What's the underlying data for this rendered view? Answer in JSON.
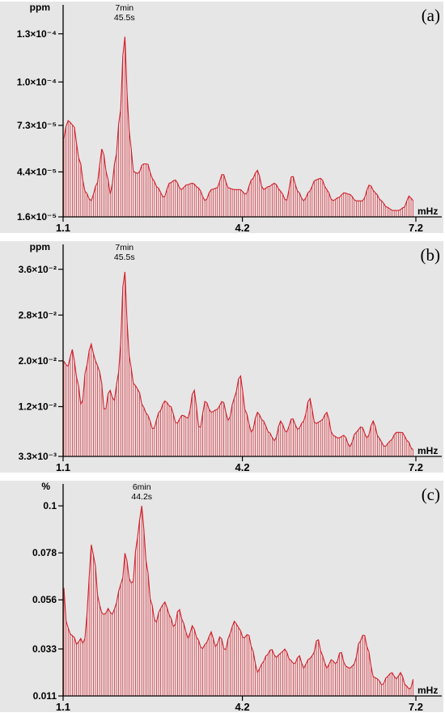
{
  "chart_data": [
    {
      "type": "bar",
      "panel_label": "(a)",
      "ylabel": "ppm",
      "xlabel": "mHz",
      "yticks": [
        "1.6×10⁻⁵",
        "4.4×10⁻⁵",
        "7.3×10⁻⁵",
        "1.0×10⁻⁴",
        "1.3×10⁻⁴"
      ],
      "ytick_values": [
        1.6e-05,
        4.4e-05,
        7.3e-05,
        0.0001,
        0.00013
      ],
      "xticks": [
        "1.1",
        "4.2",
        "7.2"
      ],
      "xtick_values": [
        1.1,
        4.2,
        7.2
      ],
      "xlim": [
        1.1,
        7.2
      ],
      "ylim": [
        1.6e-05,
        0.000145
      ],
      "peak": {
        "line1": "7min",
        "line2": "45.5s",
        "x": 2.16,
        "y": 0.00013
      },
      "spectrum": [
        [
          1.1,
          6.4e-05
        ],
        [
          1.18,
          7.6e-05
        ],
        [
          1.28,
          7.3e-05
        ],
        [
          1.38,
          5.2e-05
        ],
        [
          1.48,
          3.2e-05
        ],
        [
          1.58,
          2.6e-05
        ],
        [
          1.68,
          3.6e-05
        ],
        [
          1.78,
          5.9e-05
        ],
        [
          1.85,
          4.4e-05
        ],
        [
          1.92,
          3e-05
        ],
        [
          2.0,
          5e-05
        ],
        [
          2.08,
          7.8e-05
        ],
        [
          2.16,
          0.00013
        ],
        [
          2.24,
          7e-05
        ],
        [
          2.32,
          4.4e-05
        ],
        [
          2.4,
          4.3e-05
        ],
        [
          2.48,
          4.9e-05
        ],
        [
          2.56,
          4.9e-05
        ],
        [
          2.64,
          4e-05
        ],
        [
          2.74,
          3.4e-05
        ],
        [
          2.84,
          2.8e-05
        ],
        [
          2.94,
          3.7e-05
        ],
        [
          3.04,
          3.9e-05
        ],
        [
          3.14,
          3.3e-05
        ],
        [
          3.24,
          3.6e-05
        ],
        [
          3.34,
          3.7e-05
        ],
        [
          3.44,
          3.4e-05
        ],
        [
          3.56,
          2.6e-05
        ],
        [
          3.66,
          3.3e-05
        ],
        [
          3.76,
          3.4e-05
        ],
        [
          3.86,
          4.3e-05
        ],
        [
          3.96,
          3.4e-05
        ],
        [
          4.06,
          3.3e-05
        ],
        [
          4.16,
          3.3e-05
        ],
        [
          4.26,
          3e-05
        ],
        [
          4.36,
          3.9e-05
        ],
        [
          4.46,
          4.5e-05
        ],
        [
          4.56,
          3.3e-05
        ],
        [
          4.66,
          3.5e-05
        ],
        [
          4.76,
          3.7e-05
        ],
        [
          4.86,
          3.2e-05
        ],
        [
          4.96,
          2.6e-05
        ],
        [
          5.06,
          4.2e-05
        ],
        [
          5.16,
          3.2e-05
        ],
        [
          5.26,
          2.6e-05
        ],
        [
          5.36,
          3.2e-05
        ],
        [
          5.46,
          3.9e-05
        ],
        [
          5.56,
          4e-05
        ],
        [
          5.66,
          3.3e-05
        ],
        [
          5.76,
          2.6e-05
        ],
        [
          5.86,
          2.8e-05
        ],
        [
          5.96,
          3.1e-05
        ],
        [
          6.06,
          3e-05
        ],
        [
          6.16,
          2.6e-05
        ],
        [
          6.28,
          2.6e-05
        ],
        [
          6.4,
          3.6e-05
        ],
        [
          6.5,
          3.1e-05
        ],
        [
          6.6,
          2.6e-05
        ],
        [
          6.7,
          2.2e-05
        ],
        [
          6.8,
          2e-05
        ],
        [
          6.9,
          2e-05
        ],
        [
          7.0,
          2.2e-05
        ],
        [
          7.08,
          2.9e-05
        ],
        [
          7.16,
          2.6e-05
        ],
        [
          7.2,
          2.4e-05
        ]
      ]
    },
    {
      "type": "bar",
      "panel_label": "(b)",
      "ylabel": "ppm",
      "xlabel": "mHz",
      "yticks": [
        "3.3×10⁻³",
        "1.2×10⁻²",
        "2.0×10⁻²",
        "2.8×10⁻²",
        "3.6×10⁻²"
      ],
      "ytick_values": [
        0.0033,
        0.012,
        0.02,
        0.028,
        0.036
      ],
      "xticks": [
        "1.1",
        "4.2",
        "7.2"
      ],
      "xtick_values": [
        1.1,
        4.2,
        7.2
      ],
      "xlim": [
        1.1,
        7.2
      ],
      "ylim": [
        0.0033,
        0.0395
      ],
      "peak": {
        "line1": "7min",
        "line2": "45.5s",
        "x": 2.16,
        "y": 0.036
      },
      "spectrum": [
        [
          1.1,
          0.02
        ],
        [
          1.18,
          0.019
        ],
        [
          1.26,
          0.022
        ],
        [
          1.34,
          0.017
        ],
        [
          1.42,
          0.012
        ],
        [
          1.5,
          0.019
        ],
        [
          1.58,
          0.023
        ],
        [
          1.66,
          0.02
        ],
        [
          1.74,
          0.018
        ],
        [
          1.82,
          0.011
        ],
        [
          1.9,
          0.015
        ],
        [
          1.98,
          0.013
        ],
        [
          2.06,
          0.018
        ],
        [
          2.16,
          0.036
        ],
        [
          2.24,
          0.021
        ],
        [
          2.32,
          0.016
        ],
        [
          2.4,
          0.015
        ],
        [
          2.48,
          0.012
        ],
        [
          2.56,
          0.0105
        ],
        [
          2.66,
          0.008
        ],
        [
          2.76,
          0.011
        ],
        [
          2.86,
          0.013
        ],
        [
          2.96,
          0.012
        ],
        [
          3.06,
          0.009
        ],
        [
          3.16,
          0.0105
        ],
        [
          3.26,
          0.01
        ],
        [
          3.36,
          0.015
        ],
        [
          3.46,
          0.008
        ],
        [
          3.56,
          0.013
        ],
        [
          3.66,
          0.011
        ],
        [
          3.76,
          0.0115
        ],
        [
          3.86,
          0.013
        ],
        [
          3.96,
          0.0095
        ],
        [
          4.06,
          0.0135
        ],
        [
          4.16,
          0.0175
        ],
        [
          4.26,
          0.011
        ],
        [
          4.36,
          0.0075
        ],
        [
          4.46,
          0.011
        ],
        [
          4.56,
          0.0095
        ],
        [
          4.66,
          0.0075
        ],
        [
          4.76,
          0.006
        ],
        [
          4.86,
          0.0095
        ],
        [
          4.96,
          0.0075
        ],
        [
          5.06,
          0.01
        ],
        [
          5.16,
          0.008
        ],
        [
          5.26,
          0.0095
        ],
        [
          5.36,
          0.0135
        ],
        [
          5.46,
          0.009
        ],
        [
          5.56,
          0.0095
        ],
        [
          5.66,
          0.011
        ],
        [
          5.76,
          0.007
        ],
        [
          5.86,
          0.0065
        ],
        [
          5.96,
          0.007
        ],
        [
          6.06,
          0.005
        ],
        [
          6.16,
          0.0075
        ],
        [
          6.26,
          0.0085
        ],
        [
          6.36,
          0.0065
        ],
        [
          6.46,
          0.0095
        ],
        [
          6.56,
          0.0065
        ],
        [
          6.66,
          0.005
        ],
        [
          6.76,
          0.006
        ],
        [
          6.86,
          0.0075
        ],
        [
          6.96,
          0.0075
        ],
        [
          7.06,
          0.006
        ],
        [
          7.14,
          0.0045
        ],
        [
          7.2,
          0.004
        ]
      ]
    },
    {
      "type": "bar",
      "panel_label": "(c)",
      "ylabel": "%",
      "xlabel": "mHz",
      "yticks": [
        "0.011",
        "0.033",
        "0.056",
        "0.078",
        "0.1"
      ],
      "ytick_values": [
        0.011,
        0.033,
        0.056,
        0.078,
        0.1
      ],
      "xticks": [
        "1.1",
        "4.2",
        "7.2"
      ],
      "xtick_values": [
        1.1,
        4.2,
        7.2
      ],
      "xlim": [
        1.1,
        7.2
      ],
      "ylim": [
        0.011,
        0.108
      ],
      "peak": {
        "line1": "6min",
        "line2": "44.2s",
        "x": 2.46,
        "y": 0.1
      },
      "spectrum": [
        [
          1.1,
          0.064
        ],
        [
          1.16,
          0.045
        ],
        [
          1.22,
          0.04
        ],
        [
          1.28,
          0.039
        ],
        [
          1.34,
          0.035
        ],
        [
          1.4,
          0.038
        ],
        [
          1.46,
          0.035
        ],
        [
          1.52,
          0.05
        ],
        [
          1.58,
          0.082
        ],
        [
          1.64,
          0.076
        ],
        [
          1.7,
          0.058
        ],
        [
          1.76,
          0.05
        ],
        [
          1.82,
          0.049
        ],
        [
          1.88,
          0.052
        ],
        [
          1.94,
          0.049
        ],
        [
          2.0,
          0.052
        ],
        [
          2.06,
          0.06
        ],
        [
          2.12,
          0.065
        ],
        [
          2.18,
          0.079
        ],
        [
          2.24,
          0.066
        ],
        [
          2.3,
          0.063
        ],
        [
          2.38,
          0.085
        ],
        [
          2.46,
          0.1
        ],
        [
          2.54,
          0.074
        ],
        [
          2.62,
          0.055
        ],
        [
          2.7,
          0.045
        ],
        [
          2.78,
          0.052
        ],
        [
          2.86,
          0.055
        ],
        [
          2.94,
          0.049
        ],
        [
          3.02,
          0.043
        ],
        [
          3.1,
          0.052
        ],
        [
          3.18,
          0.045
        ],
        [
          3.26,
          0.038
        ],
        [
          3.34,
          0.044
        ],
        [
          3.42,
          0.038
        ],
        [
          3.5,
          0.033
        ],
        [
          3.58,
          0.036
        ],
        [
          3.66,
          0.041
        ],
        [
          3.74,
          0.034
        ],
        [
          3.82,
          0.039
        ],
        [
          3.9,
          0.032
        ],
        [
          3.98,
          0.04
        ],
        [
          4.06,
          0.046
        ],
        [
          4.14,
          0.043
        ],
        [
          4.22,
          0.038
        ],
        [
          4.3,
          0.04
        ],
        [
          4.38,
          0.032
        ],
        [
          4.46,
          0.022
        ],
        [
          4.54,
          0.026
        ],
        [
          4.62,
          0.03
        ],
        [
          4.7,
          0.033
        ],
        [
          4.78,
          0.029
        ],
        [
          4.86,
          0.031
        ],
        [
          4.94,
          0.033
        ],
        [
          5.02,
          0.028
        ],
        [
          5.1,
          0.026
        ],
        [
          5.18,
          0.03
        ],
        [
          5.26,
          0.024
        ],
        [
          5.34,
          0.028
        ],
        [
          5.42,
          0.03
        ],
        [
          5.5,
          0.038
        ],
        [
          5.58,
          0.03
        ],
        [
          5.66,
          0.024
        ],
        [
          5.74,
          0.028
        ],
        [
          5.82,
          0.026
        ],
        [
          5.9,
          0.032
        ],
        [
          5.98,
          0.025
        ],
        [
          6.06,
          0.024
        ],
        [
          6.14,
          0.026
        ],
        [
          6.22,
          0.036
        ],
        [
          6.3,
          0.04
        ],
        [
          6.38,
          0.032
        ],
        [
          6.46,
          0.02
        ],
        [
          6.54,
          0.019
        ],
        [
          6.62,
          0.016
        ],
        [
          6.7,
          0.02
        ],
        [
          6.78,
          0.022
        ],
        [
          6.86,
          0.019
        ],
        [
          6.94,
          0.022
        ],
        [
          7.02,
          0.016
        ],
        [
          7.1,
          0.014
        ],
        [
          7.16,
          0.019
        ],
        [
          7.2,
          0.017
        ]
      ]
    }
  ]
}
